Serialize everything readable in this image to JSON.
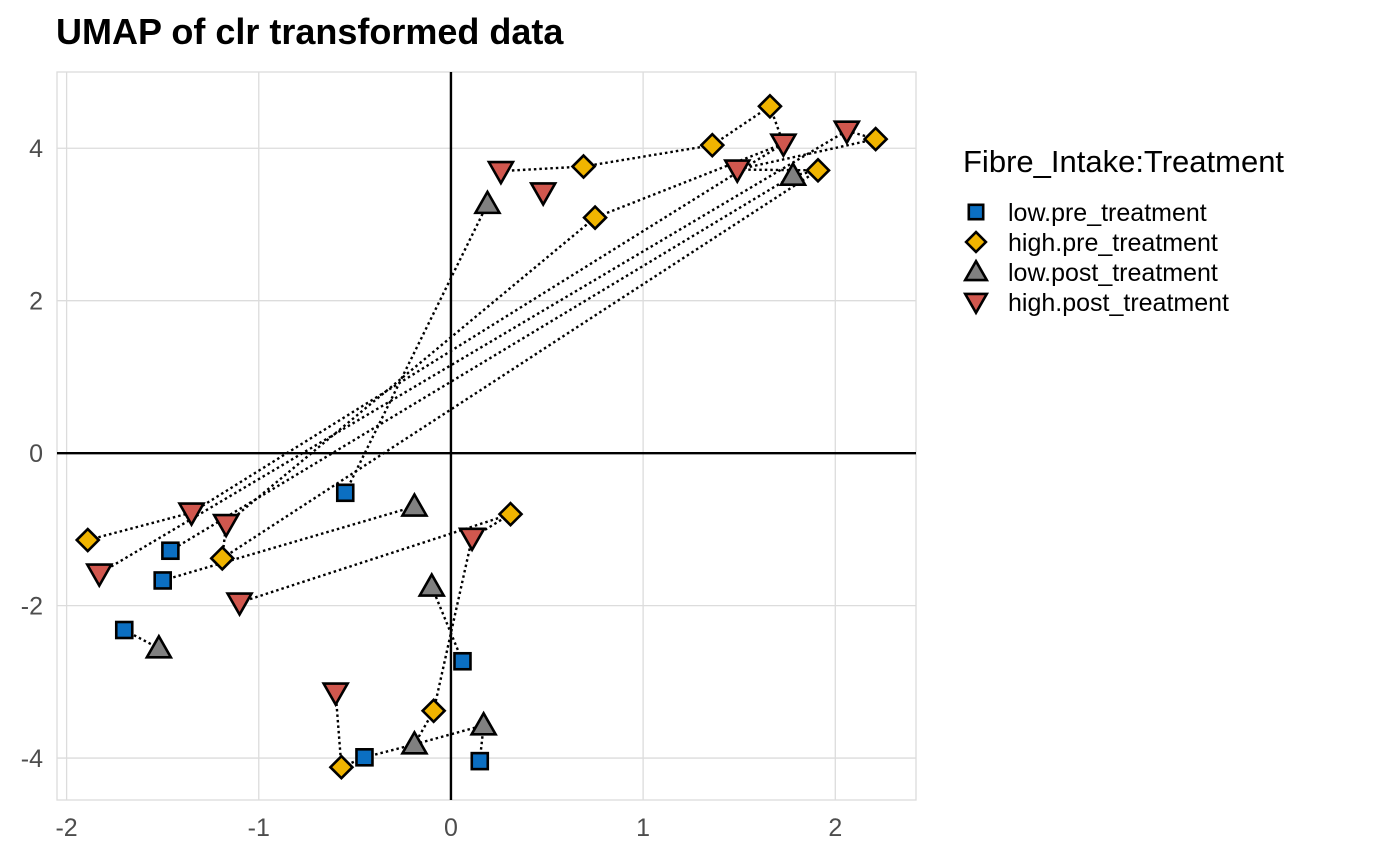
{
  "chart_data": {
    "type": "scatter",
    "title": "UMAP of clr transformed data",
    "xlabel": "",
    "ylabel": "",
    "xlim": [
      -2.05,
      2.42
    ],
    "ylim": [
      -4.55,
      5.0
    ],
    "x_ticks": [
      -2,
      -1,
      0,
      1,
      2
    ],
    "y_ticks": [
      -4,
      -2,
      0,
      2,
      4
    ],
    "x_tick_labels": [
      "-2",
      "-1",
      "0",
      "1",
      "2"
    ],
    "y_tick_labels": [
      "-4",
      "-2",
      "0",
      "2",
      "4"
    ],
    "grid": true,
    "reference_lines": {
      "x": 0,
      "y": 0
    },
    "legend": {
      "title": "Fibre_Intake:Treatment",
      "placement": "right",
      "entries": [
        {
          "label": "low.pre_treatment",
          "shape": "square",
          "color": "#0b6fc2"
        },
        {
          "label": "high.pre_treatment",
          "shape": "diamond",
          "color": "#f0b400"
        },
        {
          "label": "low.post_treatment",
          "shape": "triangle-up",
          "color": "#808080"
        },
        {
          "label": "high.post_treatment",
          "shape": "triangle-down",
          "color": "#d1574e"
        }
      ]
    },
    "series": [
      {
        "name": "low.pre_treatment",
        "points": [
          {
            "x": -0.55,
            "y": -0.52
          },
          {
            "x": -1.46,
            "y": -1.28
          },
          {
            "x": -1.5,
            "y": -1.67
          },
          {
            "x": -1.7,
            "y": -2.32
          },
          {
            "x": 0.06,
            "y": -2.73
          },
          {
            "x": -0.45,
            "y": -3.99
          },
          {
            "x": 0.15,
            "y": -4.04
          }
        ]
      },
      {
        "name": "high.pre_treatment",
        "points": [
          {
            "x": 1.66,
            "y": 4.55
          },
          {
            "x": 1.36,
            "y": 4.04
          },
          {
            "x": 0.69,
            "y": 3.76
          },
          {
            "x": 0.75,
            "y": 3.09
          },
          {
            "x": 2.21,
            "y": 4.12
          },
          {
            "x": 1.91,
            "y": 3.71
          },
          {
            "x": -1.89,
            "y": -1.14
          },
          {
            "x": -1.19,
            "y": -1.38
          },
          {
            "x": 0.31,
            "y": -0.8
          },
          {
            "x": -0.09,
            "y": -3.38
          },
          {
            "x": -0.57,
            "y": -4.12
          }
        ]
      },
      {
        "name": "low.post_treatment",
        "points": [
          {
            "x": 0.19,
            "y": 3.27
          },
          {
            "x": 1.78,
            "y": 3.64
          },
          {
            "x": -0.19,
            "y": -0.7
          },
          {
            "x": -0.1,
            "y": -1.75
          },
          {
            "x": -1.52,
            "y": -2.56
          },
          {
            "x": 0.17,
            "y": -3.57
          },
          {
            "x": -0.19,
            "y": -3.82
          }
        ]
      },
      {
        "name": "high.post_treatment",
        "points": [
          {
            "x": 0.26,
            "y": 3.7
          },
          {
            "x": 0.48,
            "y": 3.42
          },
          {
            "x": 1.49,
            "y": 3.72
          },
          {
            "x": 1.73,
            "y": 4.06
          },
          {
            "x": 2.06,
            "y": 4.23
          },
          {
            "x": -1.35,
            "y": -0.78
          },
          {
            "x": -1.17,
            "y": -0.93
          },
          {
            "x": -1.83,
            "y": -1.58
          },
          {
            "x": -1.1,
            "y": -1.96
          },
          {
            "x": 0.11,
            "y": -1.11
          },
          {
            "x": -0.6,
            "y": -3.14
          }
        ]
      }
    ],
    "connections": [
      [
        [
          0.26,
          3.7
        ],
        [
          0.69,
          3.76
        ]
      ],
      [
        [
          0.69,
          3.76
        ],
        [
          1.36,
          4.04
        ]
      ],
      [
        [
          1.36,
          4.04
        ],
        [
          1.66,
          4.55
        ]
      ],
      [
        [
          1.66,
          4.55
        ],
        [
          1.73,
          4.06
        ]
      ],
      [
        [
          1.73,
          4.06
        ],
        [
          0.75,
          3.09
        ]
      ],
      [
        [
          2.06,
          4.23
        ],
        [
          2.21,
          4.12
        ]
      ],
      [
        [
          2.21,
          4.12
        ],
        [
          1.49,
          3.72
        ]
      ],
      [
        [
          1.49,
          3.72
        ],
        [
          1.91,
          3.71
        ]
      ],
      [
        [
          1.91,
          3.71
        ],
        [
          1.78,
          3.64
        ]
      ],
      [
        [
          0.19,
          3.27
        ],
        [
          -0.55,
          -0.52
        ]
      ],
      [
        [
          1.73,
          4.06
        ],
        [
          -1.35,
          -0.78
        ]
      ],
      [
        [
          2.06,
          4.23
        ],
        [
          -1.83,
          -1.58
        ]
      ],
      [
        [
          1.78,
          3.64
        ],
        [
          -1.46,
          -1.28
        ]
      ],
      [
        [
          1.91,
          3.71
        ],
        [
          -1.19,
          -1.38
        ]
      ],
      [
        [
          0.75,
          3.09
        ],
        [
          -1.17,
          -0.93
        ]
      ],
      [
        [
          -1.89,
          -1.14
        ],
        [
          -1.35,
          -0.78
        ]
      ],
      [
        [
          -1.19,
          -1.38
        ],
        [
          -1.17,
          -0.93
        ]
      ],
      [
        [
          -1.5,
          -1.67
        ],
        [
          -0.19,
          -0.7
        ]
      ],
      [
        [
          -1.1,
          -1.96
        ],
        [
          0.31,
          -0.8
        ]
      ],
      [
        [
          0.31,
          -0.8
        ],
        [
          0.11,
          -1.11
        ]
      ],
      [
        [
          0.11,
          -1.11
        ],
        [
          -0.09,
          -3.38
        ]
      ],
      [
        [
          -0.1,
          -1.75
        ],
        [
          0.06,
          -2.73
        ]
      ],
      [
        [
          -1.7,
          -2.32
        ],
        [
          -1.52,
          -2.56
        ]
      ],
      [
        [
          -0.6,
          -3.14
        ],
        [
          -0.57,
          -4.12
        ]
      ],
      [
        [
          -0.57,
          -4.12
        ],
        [
          -0.45,
          -3.99
        ]
      ],
      [
        [
          -0.45,
          -3.99
        ],
        [
          -0.19,
          -3.82
        ]
      ],
      [
        [
          -0.19,
          -3.82
        ],
        [
          0.17,
          -3.57
        ]
      ],
      [
        [
          -0.09,
          -3.38
        ],
        [
          -0.19,
          -3.82
        ]
      ],
      [
        [
          0.17,
          -3.57
        ],
        [
          0.15,
          -4.04
        ]
      ]
    ]
  }
}
